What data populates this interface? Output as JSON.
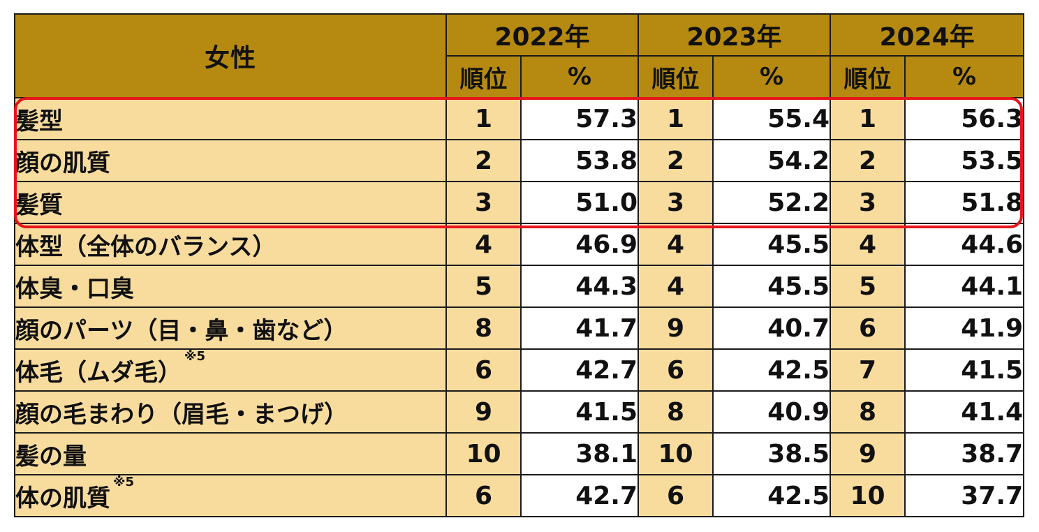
{
  "chart_data": {
    "type": "table",
    "group_label": "女性",
    "years": [
      "2022年",
      "2023年",
      "2024年"
    ],
    "subheaders": {
      "rank": "順位",
      "percent": "%"
    },
    "rows": [
      {
        "item": "髪型",
        "note": "",
        "ranks": [
          "1",
          "1",
          "1"
        ],
        "values": [
          "57.3",
          "55.4",
          "56.3"
        ]
      },
      {
        "item": "顔の肌質",
        "note": "",
        "ranks": [
          "2",
          "2",
          "2"
        ],
        "values": [
          "53.8",
          "54.2",
          "53.5"
        ]
      },
      {
        "item": "髪質",
        "note": "",
        "ranks": [
          "3",
          "3",
          "3"
        ],
        "values": [
          "51.0",
          "52.2",
          "51.8"
        ]
      },
      {
        "item": "体型（全体のバランス）",
        "note": "",
        "ranks": [
          "4",
          "4",
          "4"
        ],
        "values": [
          "46.9",
          "45.5",
          "44.6"
        ]
      },
      {
        "item": "体臭・口臭",
        "note": "",
        "ranks": [
          "5",
          "4",
          "5"
        ],
        "values": [
          "44.3",
          "45.5",
          "44.1"
        ]
      },
      {
        "item": "顔のパーツ（目・鼻・歯など）",
        "note": "",
        "ranks": [
          "8",
          "9",
          "6"
        ],
        "values": [
          "41.7",
          "40.7",
          "41.9"
        ]
      },
      {
        "item": "体毛（ムダ毛）",
        "note": "※5",
        "ranks": [
          "6",
          "6",
          "7"
        ],
        "values": [
          "42.7",
          "42.5",
          "41.5"
        ]
      },
      {
        "item": "顔の毛まわり（眉毛・まつげ）",
        "note": "",
        "ranks": [
          "9",
          "8",
          "8"
        ],
        "values": [
          "41.5",
          "40.9",
          "41.4"
        ]
      },
      {
        "item": "髪の量",
        "note": "",
        "ranks": [
          "10",
          "10",
          "9"
        ],
        "values": [
          "38.1",
          "38.5",
          "38.7"
        ]
      },
      {
        "item": "体の肌質",
        "note": "※5",
        "ranks": [
          "6",
          "6",
          "10"
        ],
        "values": [
          "42.7",
          "42.5",
          "37.7"
        ]
      }
    ],
    "highlighted_rows": [
      0,
      1,
      2
    ],
    "colors": {
      "header_bg": "#b68a10",
      "header_text": "#ffffff",
      "label_bg": "#f8dc9e",
      "value_bg": "#ffffff",
      "highlight_border": "#e8141c"
    }
  }
}
